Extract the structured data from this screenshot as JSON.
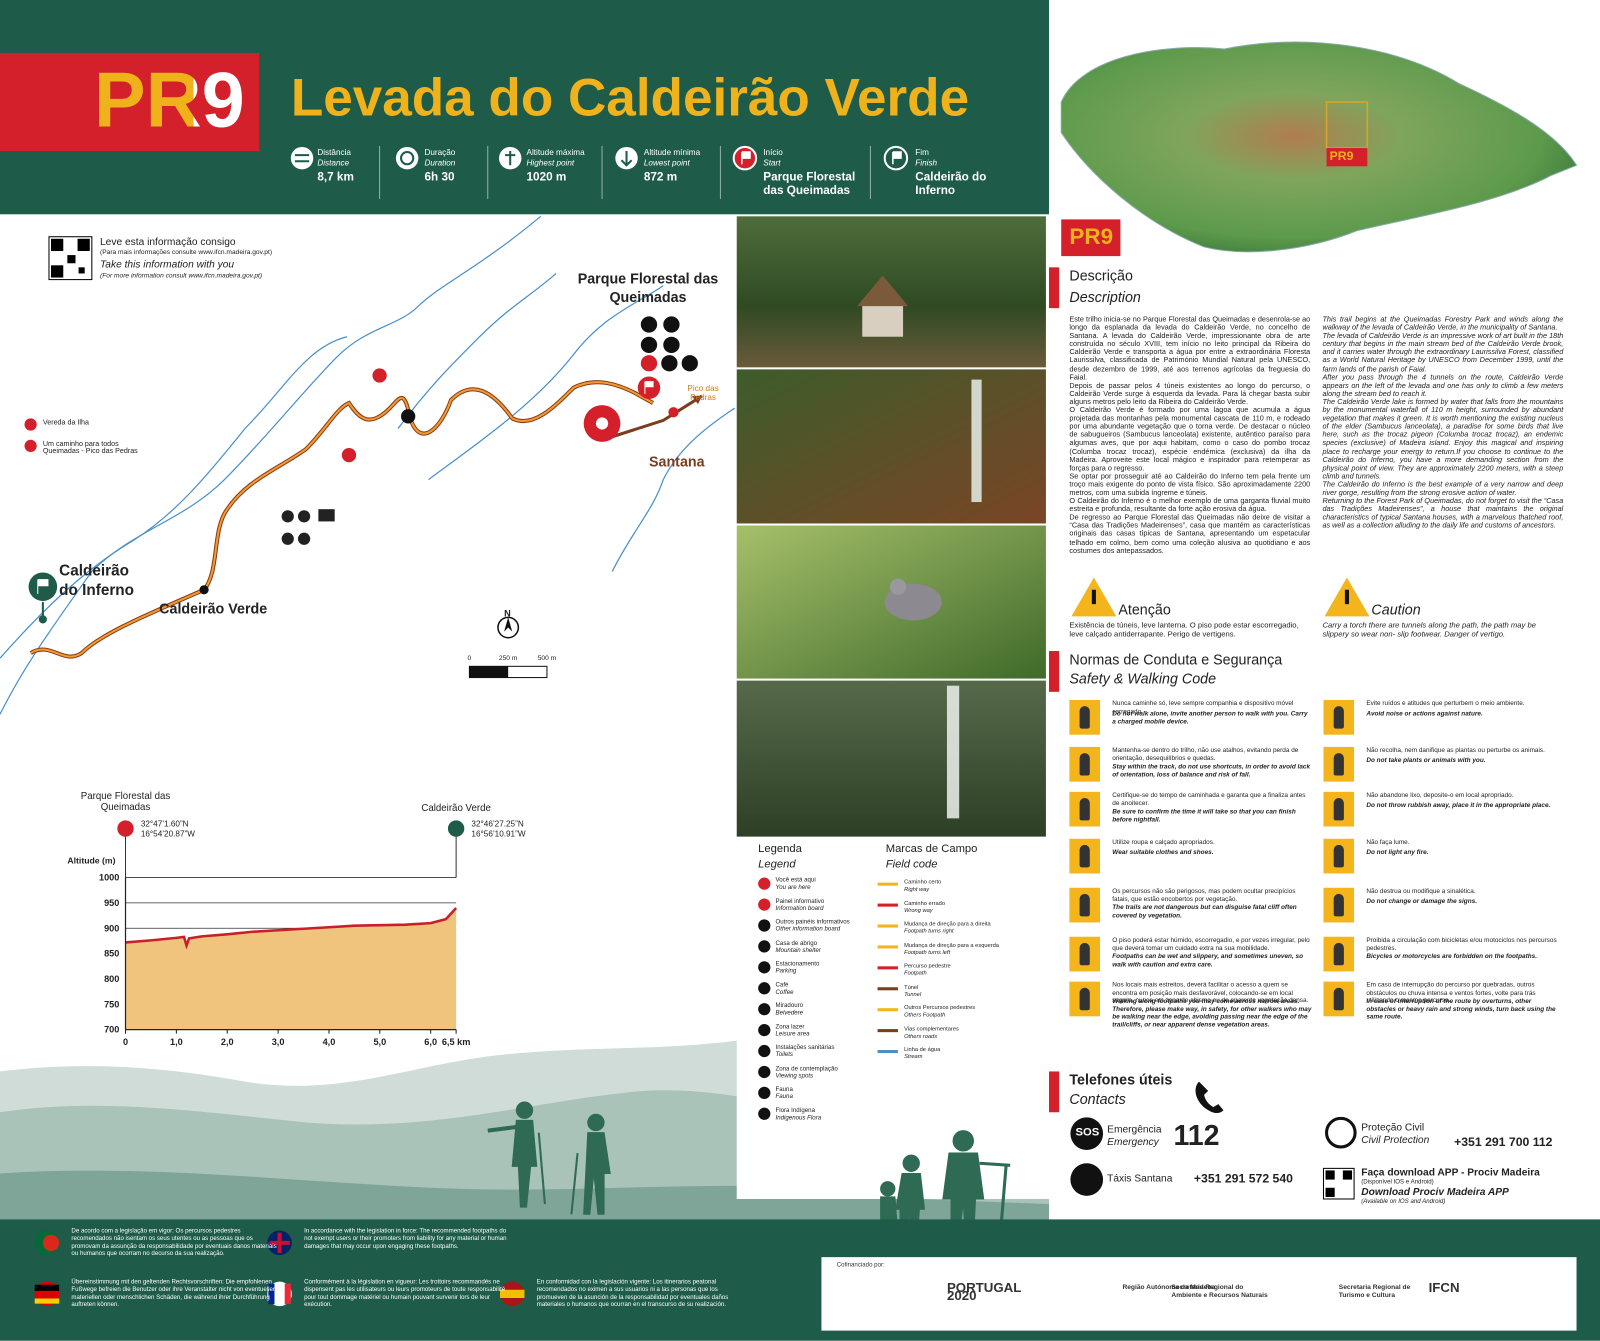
{
  "header": {
    "route_code": "PR9",
    "title": "Levada do Caldeirão Verde"
  },
  "stats": [
    {
      "label": "Distância",
      "label_en": "Distance",
      "value": "8,7 km"
    },
    {
      "label": "Duração",
      "label_en": "Duration",
      "value": "6h 30"
    },
    {
      "label": "Altitude máxima",
      "label_en": "Highest point",
      "value": "1020 m"
    },
    {
      "label": "Altitude mínima",
      "label_en": "Lowest point",
      "value": "872 m"
    },
    {
      "label": "Início",
      "label_en": "Start",
      "value": "Parque Florestal das Queimadas"
    },
    {
      "label": "Fim",
      "label_en": "Finish",
      "value": "Caldeirão do Inferno"
    }
  ],
  "take_info": {
    "pt": "Leve esta informação consigo",
    "pt_note": "(Para mais informações consulte www.ifcn.madeira.gov.pt)",
    "en": "Take this information with you",
    "en_note": "(For more information consult www.ifcn.madeira.gov.pt)"
  },
  "map": {
    "start": "Parque Florestal das Queimadas",
    "end": "Caldeirão do Inferno",
    "midpoint": "Caldeirão Verde",
    "town": "Santana",
    "peak": "Pico das Pedras",
    "routes": [
      "Vereda da Ilha",
      "Um caminho para todos Queimadas - Pico das Pedras"
    ],
    "scale": [
      "0",
      "250 m",
      "500 m"
    ],
    "north": "N"
  },
  "profile": {
    "start": {
      "name": "Parque Florestal das Queimadas",
      "lat": "32°47’1.60”N",
      "lon": "16°54’20.87”W"
    },
    "end": {
      "name": "Caldeirão Verde",
      "lat": "32°46’27.25”N",
      "lon": "16°56’10.91”W"
    },
    "y_label": "Altitude (m)",
    "x": [
      0,
      0.5,
      1.0,
      1.15,
      1.2,
      1.25,
      1.5,
      2.0,
      2.5,
      3.0,
      3.5,
      4.0,
      4.5,
      5.0,
      5.5,
      6.0,
      6.3,
      6.5
    ],
    "values": [
      872,
      876,
      881,
      883,
      866,
      880,
      884,
      888,
      893,
      896,
      899,
      902,
      905,
      906,
      907,
      910,
      918,
      940
    ],
    "xlim": [
      0,
      6.5
    ],
    "ylim": [
      700,
      1000
    ],
    "xticks": [
      0,
      {
        "value": 1,
        "label": "1,0"
      },
      {
        "value": 2,
        "label": "2,0"
      },
      {
        "value": 3,
        "label": "3,0"
      },
      {
        "value": 4,
        "label": "4,0"
      },
      {
        "value": 5,
        "label": "5,0"
      },
      {
        "value": 6,
        "label": "6,0"
      },
      {
        "value": 6.5,
        "label": "6,5 km"
      }
    ],
    "yticks": [
      700,
      750,
      800,
      850,
      900,
      950,
      1000
    ],
    "color": "#c8202b",
    "fill": "#f0c47c"
  },
  "legend": {
    "title": "Legenda",
    "title_en": "Legend",
    "items": [
      {
        "pt": "Você está aqui",
        "en": "You are here"
      },
      {
        "pt": "Painel informativo",
        "en": "Information board"
      },
      {
        "pt": "Outros painéis informativos",
        "en": "Other information board"
      },
      {
        "pt": "Casa de abrigo",
        "en": "Mountain shelter"
      },
      {
        "pt": "Estacionamento",
        "en": "Parking"
      },
      {
        "pt": "Café",
        "en": "Coffee"
      },
      {
        "pt": "Miradouro",
        "en": "Belvedere"
      },
      {
        "pt": "Zona lazer",
        "en": "Leisure area"
      },
      {
        "pt": "Instalações sanitárias",
        "en": "Toilets"
      },
      {
        "pt": "Zona de contemplação",
        "en": "Viewing spots"
      },
      {
        "pt": "Fauna",
        "en": "Fauna"
      },
      {
        "pt": "Flora Indígena",
        "en": "Indigenous Flora"
      }
    ]
  },
  "field_code": {
    "title": "Marcas de Campo",
    "title_en": "Field code",
    "items": [
      {
        "pt": "Caminho certo",
        "en": "Right way"
      },
      {
        "pt": "Caminho errado",
        "en": "Wrong way"
      },
      {
        "pt": "Mudança de direção para a direita",
        "en": "Footpath turns right"
      },
      {
        "pt": "Mudança de direção para a esquerda",
        "en": "Footpath turns left"
      },
      {
        "pt": "Percurso pedestre",
        "en": "Footpath"
      },
      {
        "pt": "Túnel",
        "en": "Tunnel"
      },
      {
        "pt": "Outros Percursos pedestres",
        "en": "Others Footpath"
      },
      {
        "pt": "Vias complementares",
        "en": "Others roads"
      },
      {
        "pt": "Linha de água",
        "en": "Stream"
      }
    ]
  },
  "description": {
    "title": "Descrição",
    "title_en": "Description",
    "pt": [
      "Este trilho inicia-se no Parque Florestal das Queimadas e desenrola-se ao longo da esplanada da levada do Caldeirão Verde, no concelho de Santana. A levada do Caldeirão Verde, impressionante obra de arte construída no século XVIII, tem início no leito principal da Ribeira do Caldeirão Verde e transporta a água por entre a extraordinária Floresta Laurissilva, classificada de Património Mundial Natural pela UNESCO, desde dezembro de 1999, até aos terrenos agrícolas da freguesia do Faial.",
      "Depois de passar pelos 4 túneis existentes ao longo do percurso, o Caldeirão Verde surge à esquerda da levada. Para lá chegar basta subir alguns metros pelo leito da Ribeira do Caldeirão Verde.",
      "O Caldeirão Verde é formado por uma lagoa que acumula a água projetada das montanhas pela monumental cascata de 110 m, e rodeado por uma abundante vegetação que o torna verde. De destacar o núcleo de sabugueiros (Sambucus lanceolata) existente, autêntico paraíso para algumas aves, que por aqui habitam, como o caso do pombo trocaz (Columba trocaz trocaz), espécie endémica (exclusiva) da ilha da Madeira. Aproveite este local mágico e inspirador para retemperar as forças para o regresso.",
      "Se optar por prosseguir até ao Caldeirão do Inferno tem pela frente um troço mais exigente do ponto de vista físico. São aproximadamente 2200 metros, com uma subida íngreme e túneis.",
      "O Caldeirão do Inferno é o melhor exemplo de uma garganta fluvial muito estreita e profunda, resultante da forte ação erosiva da água.",
      "De regresso ao Parque Florestal das Queimadas não deixe de visitar a “Casa das Tradições Madeirenses”, casa que mantém as características originais das casas típicas de Santana, apresentando um espetacular telhado em colmo, bem como uma coleção alusiva ao quotidiano e aos costumes dos antepassados."
    ],
    "en": [
      "This trail begins at the Queimadas Forestry Park and winds along the walkway of the levada of Caldeirão Verde, in the municipality of Santana.",
      "The levada of Caldeirão Verde is an impressive work of art built in the 18th century that begins in the main stream bed of the Caldeirão Verde brook, and it carries water through the extraordinary Laurissilva Forest, classified as a World Natural Heritage by UNESCO from December 1999, until the farm lands of the parish of Faial.",
      "After you pass through the 4 tunnels on the route, Caldeirão Verde appears on the left of the levada and one has only to climb a few meters along the stream bed to reach it.",
      "The Caldeirão Verde lake is formed by water that falls from the mountains by the monumental waterfall of 110 m height, surrounded by abundant vegetation that makes it green. It is worth mentioning the existing nucleus of the elder (Sambucus lanceolata), a paradise for some birds that live here, such as the trocaz pigeon (Columba trocaz trocaz), an endemic species (exclusive) of Madeira island. Enjoy this magical and inspiring place to recharge your energy to return.If you choose to continue to the Caldeirão do Inferno, you have a more demanding section from the physical point of view. They are approximately 2200 meters, with a steep climb and tunnels.",
      "The Caldeirão do Inferno is the best example of a very narrow and deep river gorge, resulting from the strong erosive action of water.",
      "Returning to the Forest Park of Queimadas, do not forget to visit the “Casa das Tradições Madeirenses”, a house that maintains the original characteristics of typical Santana houses, with a marvelous thatched roof, as well as a collection alluding to the daily life and customs of ancestors."
    ]
  },
  "warning": {
    "title": "Atenção",
    "text": "Existência de túneis, leve lanterna. O piso pode estar escorregadio, leve calçado antiderrapante. Perigo de vertigens.",
    "title_en": "Caution",
    "text_en": "Carry a torch there are tunnels along the path, the path may be slippery so wear non- slip footwear. Danger of vertigo."
  },
  "safety": {
    "title": "Normas de Conduta e Segurança",
    "title_en": "Safety & Walking Code",
    "items": [
      {
        "pt": "Nunca caminhe só, leve sempre companhia e dispositivo móvel carregado.",
        "en": "Do not walk alone, invite another person to walk with you. Carry a charged mobile device."
      },
      {
        "pt": "Mantenha-se dentro do trilho, não use atalhos, evitando perda de orientação, desequilíbrios e quedas.",
        "en": "Stay within the track, do not use shortcuts, in order to avoid lack of orientation, loss of balance and risk of fall."
      },
      {
        "pt": "Certifique-se do tempo de caminhada e garanta que a finaliza antes de anoitecer.",
        "en": "Be sure to confirm the time it will take so that you can finish before nightfall."
      },
      {
        "pt": "Utilize roupa e calçado apropriados.",
        "en": "Wear suitable clothes and shoes."
      },
      {
        "pt": "Os percursos não são perigosos, mas podem ocultar precipícios fatais, que estão encobertos por vegetação.",
        "en": "The trails are not dangerous but can disguise fatal cliff often covered by vegetation."
      },
      {
        "pt": "O piso poderá estar húmido, escorregadio, e por vezes irregular, pelo que deverá tomar um cuidado extra na sua mobilidade.",
        "en": "Footpaths can be wet and slippery, and sometimes uneven, so walk with caution and extra care."
      },
      {
        "pt": "Nos locais mais estreitos, deverá facilitar o acesso a quem se encontra em posição mais desfavorável, colocando-se em local seguro, nunca em zona de abismo ou de aparente vegetação densa.",
        "en": "Walking along footpaths you may come across narrow areas. Therefore, please make way, in safety, for other walkers who may be walking near the edge, avoiding passing near the edge of the trail/cliffs, or near apparent dense vegetation areas."
      },
      {
        "pt": "Evite ruídos e atitudes que perturbem o meio ambiente.",
        "en": "Avoid noise or actions against nature."
      },
      {
        "pt": "Não recolha, nem danifique as plantas ou perturbe os animais.",
        "en": "Do not take plants or animals with you."
      },
      {
        "pt": "Não abandone lixo, deposite-o em local apropriado.",
        "en": "Do not throw rubbish away, place it in the appropriate place."
      },
      {
        "pt": "Não faça lume.",
        "en": "Do not light any fire."
      },
      {
        "pt": "Não destrua ou modifique a sinalética.",
        "en": "Do not change or damage the signs."
      },
      {
        "pt": "Proibida a circulação com bicicletas e/ou motociclos nos percursos pedestres.",
        "en": "Bicycles or motorcycles are forbidden on the footpaths."
      },
      {
        "pt": "Em caso de interrupção do percurso por quebradas, outros obstáculos ou chuva intensa e ventos fortes, volte para trás utilizando o mesmo percurso.",
        "en": "In case of interruption of the route by overturns, other obstacles or heavy rain and strong winds, turn back using the same route."
      }
    ]
  },
  "contacts": {
    "title": "Telefones úteis",
    "title_en": "Contacts",
    "sos": "SOS",
    "emergency": "Emergência",
    "emergency_en": "Emergency",
    "emergency_number": "112",
    "taxi": "Táxis Santana",
    "taxi_number": "+351 291 572 540",
    "civil": "Proteção Civil",
    "civil_en": "Civil Protection",
    "civil_number": "+351 291 700 112",
    "app": "Faça download APP - Prociv Madeira",
    "app_note": "(Disponível IOS e Android)",
    "app_en": "Download Prociv Madeira APP",
    "app_en_note": "(Available on IOS and Android)"
  },
  "footer": {
    "notices": [
      "De acordo com a legislação em vigor: Os percursos pedestres recomendados não isentam os seus utentes ou as pessoas que os promovam da assunção da responsabilidade por eventuais danos materiais ou humanos que ocorram no decurso da sua realização.",
      "In accordance with the legislation in force: The recommended footpaths do not exempt users or their promoters from liability for any material or human damages that may occur upon engaging these footpaths.",
      "Übereinstimmung mit den geltenden Rechtsvorschriften: Die empfohlenen Fußwege befreien die Benutzer oder ihre Veranstalter nicht von eventuellen materiellen oder menschlichen Schäden, die während ihrer Durchführung auftreten können.",
      "Conformément à la législation en vigueur: Les trottoirs recommandés ne dispensent pas les utilisateurs ou leurs promoteurs de toute responsabilité pour tout dommage matériel ou humain pouvant survenir lors de leur exécution.",
      "En conformidad con la legislación vigente: Los itinerarios peatonal recomendados no eximen a sus usuarios ni a las personas que los promueven de la asunción de la responsabilidad por eventuales daños materiales o humanos que ocurran en el transcurso de su realización."
    ],
    "cofinanced": "Cofinanciado por:",
    "logos": [
      "PORTUGAL 2020",
      "Região Autónoma da Madeira",
      "Secretaria Regional do Ambiente e Recursos Naturais",
      "Secretaria Regional de Turismo e Cultura",
      "IFCN"
    ]
  }
}
